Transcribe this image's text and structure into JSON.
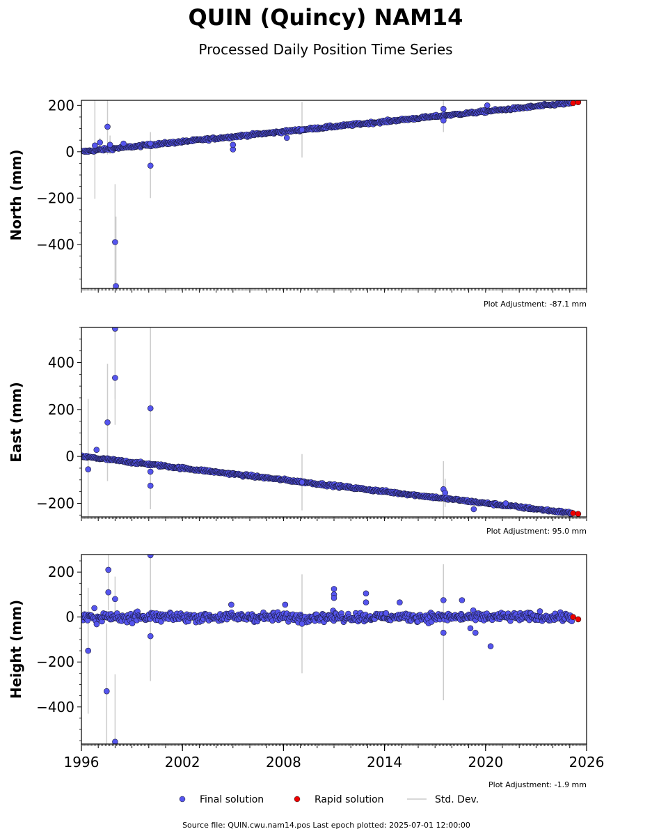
{
  "title": "QUIN (Quincy) NAM14",
  "subtitle": "Processed Daily Position Time Series",
  "footer": "Source file: QUIN.cwu.nam14.pos  Last epoch plotted: 2025-07-01 12:00:00",
  "legend": {
    "final": "Final solution",
    "rapid": "Rapid solution",
    "stddev": "Std. Dev."
  },
  "colors": {
    "final": "#5555ee",
    "rapid": "#ee0000",
    "stddev": "#cccccc"
  },
  "chart_data": [
    {
      "type": "scatter",
      "panel": "north",
      "ylabel": "North (mm)",
      "adjustment": "Plot Adjustment: -87.1 mm",
      "xlim": [
        1996,
        2026
      ],
      "ylim": [
        -590,
        222
      ],
      "yticks": [
        -400,
        -200,
        0,
        200
      ],
      "yticklabels": [
        "−400",
        "−200",
        "0",
        "200"
      ],
      "trend": {
        "x": [
          1996,
          2025.5
        ],
        "y": [
          0,
          214
        ]
      },
      "noise": 4,
      "outliers": [
        {
          "x": 1996.8,
          "y": 27,
          "err": 230
        },
        {
          "x": 1997.1,
          "y": 40,
          "err": 20
        },
        {
          "x": 1997.55,
          "y": 108,
          "err": 120
        },
        {
          "x": 1997.7,
          "y": 30,
          "err": 40
        },
        {
          "x": 1998.0,
          "y": -390,
          "err": 250
        },
        {
          "x": 1998.05,
          "y": -580,
          "err": 300
        },
        {
          "x": 1998.5,
          "y": 35,
          "err": 10
        },
        {
          "x": 2000.1,
          "y": -60,
          "err": 140
        },
        {
          "x": 2000.1,
          "y": 35,
          "err": 50
        },
        {
          "x": 2005.0,
          "y": 10,
          "err": 8
        },
        {
          "x": 2005.0,
          "y": 30,
          "err": 8
        },
        {
          "x": 2008.2,
          "y": 60,
          "err": 8
        },
        {
          "x": 2009.1,
          "y": 95,
          "err": 120
        },
        {
          "x": 2017.5,
          "y": 185,
          "err": 40
        },
        {
          "x": 2017.5,
          "y": 135,
          "err": 50
        },
        {
          "x": 2020.1,
          "y": 200,
          "err": 8
        }
      ],
      "rapid": {
        "x": [
          2025.2,
          2025.5
        ],
        "y": [
          210,
          214
        ]
      }
    },
    {
      "type": "scatter",
      "panel": "east",
      "ylabel": "East (mm)",
      "adjustment": "Plot Adjustment: 95.0 mm",
      "xlim": [
        1996,
        2026
      ],
      "ylim": [
        -258,
        550
      ],
      "yticks": [
        -200,
        0,
        200,
        400
      ],
      "yticklabels": [
        "−200",
        "0",
        "200",
        "400"
      ],
      "trend": {
        "x": [
          1996,
          2025.5
        ],
        "y": [
          0,
          -245
        ]
      },
      "noise": 4,
      "outliers": [
        {
          "x": 1996.4,
          "y": -55,
          "err": 300
        },
        {
          "x": 1996.9,
          "y": 28,
          "err": 10
        },
        {
          "x": 1997.55,
          "y": 145,
          "err": 250
        },
        {
          "x": 1998.0,
          "y": 545,
          "err": 300
        },
        {
          "x": 1998.0,
          "y": 335,
          "err": 200
        },
        {
          "x": 2000.1,
          "y": 205,
          "err": 350
        },
        {
          "x": 2000.1,
          "y": -65,
          "err": 160
        },
        {
          "x": 2000.1,
          "y": -125,
          "err": 100
        },
        {
          "x": 2009.1,
          "y": -110,
          "err": 120
        },
        {
          "x": 2017.5,
          "y": -140,
          "err": 120
        },
        {
          "x": 2017.6,
          "y": -155,
          "err": 60
        },
        {
          "x": 2019.3,
          "y": -225,
          "err": 8
        },
        {
          "x": 2021.2,
          "y": -200,
          "err": 8
        }
      ],
      "rapid": {
        "x": [
          2025.2,
          2025.5
        ],
        "y": [
          -242,
          -245
        ]
      }
    },
    {
      "type": "scatter",
      "panel": "height",
      "ylabel": "Height (mm)",
      "adjustment": "Plot Adjustment: -1.9 mm",
      "xlabel": "",
      "xlim": [
        1996,
        2026
      ],
      "xticks": [
        1996,
        2002,
        2008,
        2014,
        2020,
        2026
      ],
      "ylim": [
        -565,
        278
      ],
      "yticks": [
        -400,
        -200,
        0,
        200
      ],
      "yticklabels": [
        "−400",
        "−200",
        "0",
        "200"
      ],
      "trend": {
        "x": [
          1996,
          2025.5
        ],
        "y": [
          0,
          0
        ]
      },
      "noise": 14,
      "outliers": [
        {
          "x": 1996.4,
          "y": -150,
          "err": 280
        },
        {
          "x": 1997.5,
          "y": -330,
          "err": 300
        },
        {
          "x": 1997.6,
          "y": 210,
          "err": 150
        },
        {
          "x": 1997.6,
          "y": 110,
          "err": 80
        },
        {
          "x": 1998.0,
          "y": -555,
          "err": 300
        },
        {
          "x": 1998.0,
          "y": 80,
          "err": 100
        },
        {
          "x": 2000.1,
          "y": 275,
          "err": 300
        },
        {
          "x": 2000.1,
          "y": -85,
          "err": 200
        },
        {
          "x": 2004.9,
          "y": 55,
          "err": 8
        },
        {
          "x": 2008.1,
          "y": 55,
          "err": 8
        },
        {
          "x": 2009.1,
          "y": -30,
          "err": 220
        },
        {
          "x": 2011.0,
          "y": 125,
          "err": 8
        },
        {
          "x": 2011.0,
          "y": 100,
          "err": 8
        },
        {
          "x": 2011.0,
          "y": 85,
          "err": 8
        },
        {
          "x": 2012.9,
          "y": 105,
          "err": 8
        },
        {
          "x": 2012.9,
          "y": 65,
          "err": 8
        },
        {
          "x": 2014.9,
          "y": 65,
          "err": 8
        },
        {
          "x": 2017.5,
          "y": 75,
          "err": 160
        },
        {
          "x": 2017.5,
          "y": -70,
          "err": 300
        },
        {
          "x": 2018.6,
          "y": 75,
          "err": 8
        },
        {
          "x": 2019.1,
          "y": -50,
          "err": 8
        },
        {
          "x": 2019.4,
          "y": -70,
          "err": 8
        },
        {
          "x": 2020.3,
          "y": -130,
          "err": 8
        }
      ],
      "rapid": {
        "x": [
          2025.2,
          2025.5
        ],
        "y": [
          0,
          -10
        ]
      }
    }
  ]
}
